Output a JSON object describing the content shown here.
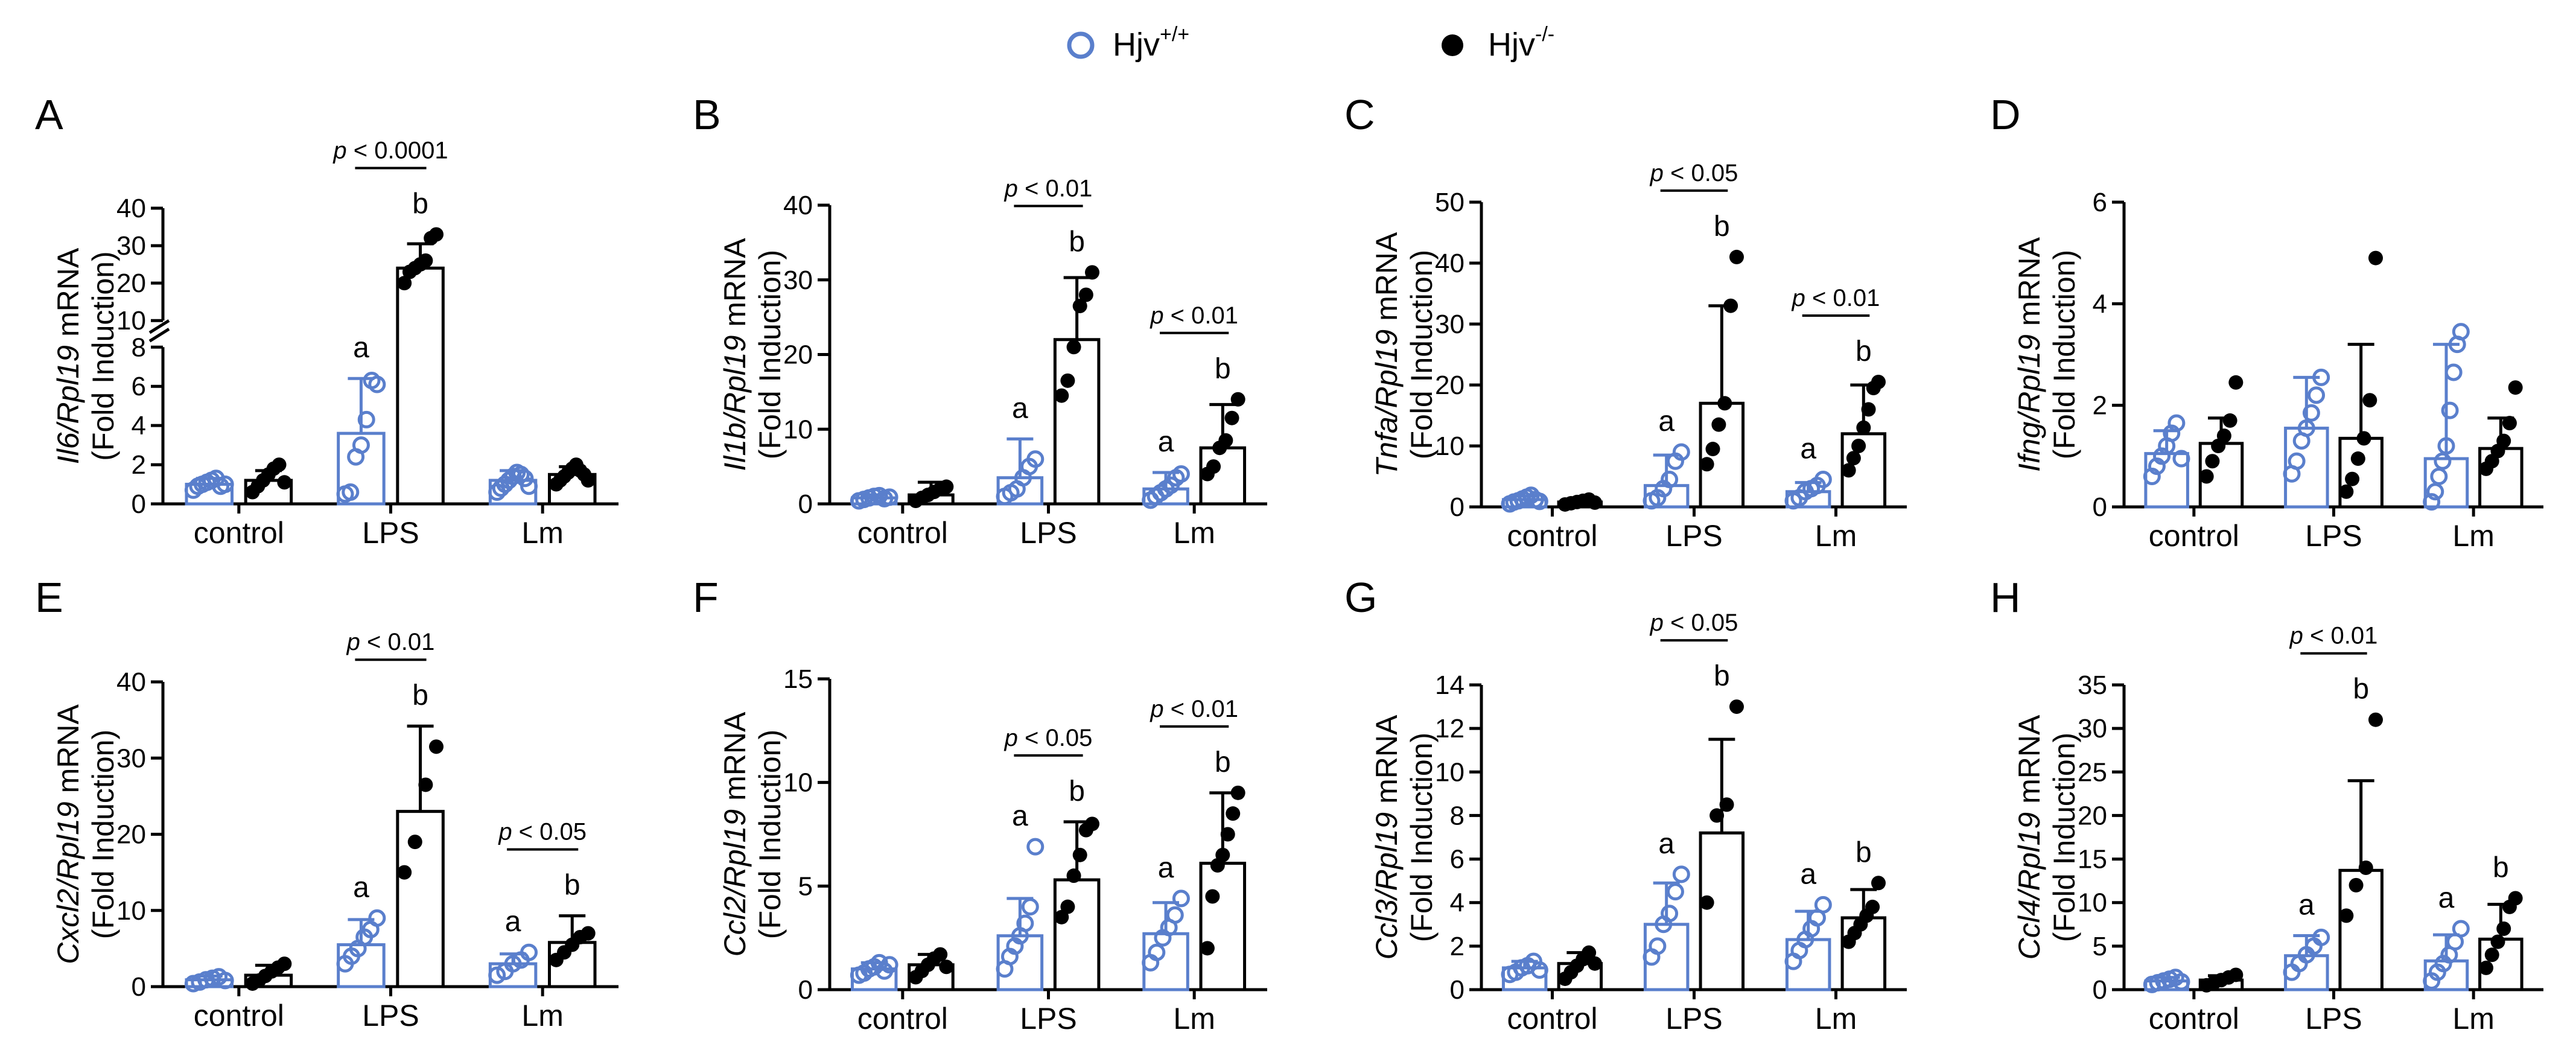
{
  "legend": {
    "wt": {
      "label": "Hjv",
      "sup": "+/+",
      "color": "#5a7fcc"
    },
    "ko": {
      "label": "Hjv",
      "sup": "-/-",
      "color": "#000000"
    }
  },
  "chart_data": [
    {
      "id": "A",
      "type": "bar",
      "letter": "A",
      "gene": "Il6",
      "ylabel_suffix": "mRNA",
      "ylabel2": "(Fold Induction)",
      "categories": [
        "control",
        "LPS",
        "Lm"
      ],
      "yticks": [
        "0",
        "2",
        "4",
        "6",
        "8",
        "10",
        "20",
        "30",
        "40"
      ],
      "ylim": [
        0,
        40
      ],
      "series": [
        {
          "name": "Hjv+/+",
          "means": [
            1.0,
            3.6,
            1.2
          ],
          "err": [
            0.3,
            2.8,
            0.5
          ],
          "points": [
            [
              0.7,
              0.9,
              1.0,
              1.1,
              1.2,
              1.3,
              0.9,
              1.0
            ],
            [
              0.5,
              0.6,
              2.4,
              3.0,
              4.3,
              6.3,
              6.1
            ],
            [
              0.6,
              0.8,
              1.0,
              1.2,
              1.4,
              1.6,
              1.5,
              1.3,
              0.9
            ]
          ]
        },
        {
          "name": "Hjv-/-",
          "means": [
            1.2,
            24.0,
            1.5
          ],
          "err": [
            0.5,
            6.5,
            0.4
          ],
          "points": [
            [
              0.6,
              0.9,
              1.2,
              1.5,
              1.8,
              2.0,
              1.1
            ],
            [
              20,
              23,
              24,
              25,
              26,
              32,
              33
            ],
            [
              1.0,
              1.2,
              1.4,
              1.6,
              1.8,
              2.0,
              1.7,
              1.5,
              1.2
            ]
          ]
        }
      ],
      "letters": [
        {
          "cat": 1,
          "series": 0,
          "text": "a"
        },
        {
          "cat": 1,
          "series": 1,
          "text": "b"
        }
      ],
      "pvalues": [
        {
          "cat": 1,
          "text": "p < 0.0001"
        }
      ]
    },
    {
      "id": "B",
      "type": "bar",
      "letter": "B",
      "gene": "Il1b",
      "ylabel_suffix": "mRNA",
      "ylabel2": "(Fold Induction)",
      "categories": [
        "control",
        "LPS",
        "Lm"
      ],
      "yticks": [
        "0",
        "10",
        "20",
        "30",
        "40"
      ],
      "ylim": [
        0,
        40
      ],
      "series": [
        {
          "name": "Hjv+/+",
          "means": [
            0.8,
            3.5,
            2.0
          ],
          "err": [
            0.4,
            5.2,
            2.2
          ],
          "points": [
            [
              0.4,
              0.6,
              0.8,
              1.0,
              1.1,
              0.7,
              0.9
            ],
            [
              1.0,
              1.5,
              2.0,
              3.5,
              5.0,
              6.0
            ],
            [
              0.5,
              1.0,
              1.5,
              2.0,
              2.5,
              3.5,
              4.0
            ]
          ]
        },
        {
          "name": "Hjv-/-",
          "means": [
            1.2,
            22.0,
            7.5
          ],
          "err": [
            1.7,
            8.3,
            5.8
          ],
          "points": [
            [
              0.4,
              0.8,
              1.2,
              1.6,
              2.0,
              2.3
            ],
            [
              14.5,
              16.5,
              21.0,
              26.5,
              28.0,
              31.0
            ],
            [
              4.0,
              5.0,
              7.5,
              8.5,
              11.5,
              14.0
            ]
          ]
        }
      ],
      "letters": [
        {
          "cat": 1,
          "series": 0,
          "text": "a"
        },
        {
          "cat": 1,
          "series": 1,
          "text": "b"
        },
        {
          "cat": 2,
          "series": 0,
          "text": "a"
        },
        {
          "cat": 2,
          "series": 1,
          "text": "b"
        }
      ],
      "pvalues": [
        {
          "cat": 1,
          "text": "p < 0.01"
        },
        {
          "cat": 2,
          "text": "p < 0.01"
        }
      ]
    },
    {
      "id": "C",
      "type": "bar",
      "letter": "C",
      "gene": "Tnfa",
      "ylabel_suffix": "mRNA",
      "ylabel2": "(Fold Induction)",
      "categories": [
        "control",
        "LPS",
        "Lm"
      ],
      "yticks": [
        "0",
        "10",
        "20",
        "30",
        "40",
        "50"
      ],
      "ylim": [
        0,
        50
      ],
      "series": [
        {
          "name": "Hjv+/+",
          "means": [
            1.2,
            3.5,
            2.5
          ],
          "err": [
            0.6,
            5.0,
            1.5
          ],
          "points": [
            [
              0.5,
              0.8,
              1.0,
              1.3,
              1.6,
              1.9,
              1.2,
              0.9
            ],
            [
              1.0,
              1.5,
              3.0,
              4.5,
              7.5,
              9.0
            ],
            [
              1.0,
              1.5,
              2.5,
              3.0,
              3.5,
              4.5
            ]
          ]
        },
        {
          "name": "Hjv-/-",
          "means": [
            0.8,
            17.0,
            12.0
          ],
          "err": [
            0.5,
            16.0,
            8.0
          ],
          "points": [
            [
              0.4,
              0.6,
              0.8,
              1.0,
              1.2,
              0.7
            ],
            [
              7.0,
              9.5,
              13.5,
              17.0,
              33.0,
              41.0
            ],
            [
              6.0,
              8.0,
              10.0,
              13.0,
              16.0,
              19.5,
              20.5
            ]
          ]
        }
      ],
      "letters": [
        {
          "cat": 1,
          "series": 0,
          "text": "a"
        },
        {
          "cat": 1,
          "series": 1,
          "text": "b"
        },
        {
          "cat": 2,
          "series": 0,
          "text": "a"
        },
        {
          "cat": 2,
          "series": 1,
          "text": "b"
        }
      ],
      "pvalues": [
        {
          "cat": 1,
          "text": "p < 0.05"
        },
        {
          "cat": 2,
          "text": "p < 0.01"
        }
      ]
    },
    {
      "id": "D",
      "type": "bar",
      "letter": "D",
      "gene": "Ifng",
      "ylabel_suffix": "mRNA",
      "ylabel2": "(Fold Induction)",
      "categories": [
        "control",
        "LPS",
        "Lm"
      ],
      "yticks": [
        "0",
        "2",
        "4",
        "6"
      ],
      "ylim": [
        0,
        6
      ],
      "series": [
        {
          "name": "Hjv+/+",
          "means": [
            1.05,
            1.55,
            0.95
          ],
          "err": [
            0.45,
            1.0,
            2.25
          ],
          "points": [
            [
              0.6,
              0.8,
              1.0,
              1.2,
              1.45,
              1.65,
              0.95
            ],
            [
              0.65,
              0.9,
              1.3,
              1.55,
              1.85,
              2.2,
              2.55
            ],
            [
              0.1,
              0.3,
              0.6,
              0.9,
              1.2,
              1.9,
              2.65,
              3.2,
              3.45
            ]
          ]
        },
        {
          "name": "Hjv-/-",
          "means": [
            1.25,
            1.35,
            1.15
          ],
          "err": [
            0.5,
            1.85,
            0.6
          ],
          "points": [
            [
              0.6,
              0.9,
              1.2,
              1.4,
              1.7,
              2.45
            ],
            [
              0.3,
              0.55,
              0.95,
              1.35,
              2.1,
              4.9
            ],
            [
              0.75,
              0.9,
              1.1,
              1.3,
              1.65,
              2.35
            ]
          ]
        }
      ],
      "letters": [],
      "pvalues": []
    },
    {
      "id": "E",
      "type": "bar",
      "letter": "E",
      "gene": "Cxcl2",
      "ylabel_suffix": "mRNA",
      "ylabel2": "(Fold Induction)",
      "categories": [
        "control",
        "LPS",
        "Lm"
      ],
      "yticks": [
        "0",
        "10",
        "20",
        "30",
        "40"
      ],
      "ylim": [
        0,
        40
      ],
      "series": [
        {
          "name": "Hjv+/+",
          "means": [
            0.9,
            5.5,
            3.0
          ],
          "err": [
            0.5,
            3.3,
            1.3
          ],
          "points": [
            [
              0.4,
              0.6,
              0.9,
              1.1,
              1.3,
              0.8
            ],
            [
              3.0,
              4.0,
              5.0,
              6.5,
              7.5,
              9.0
            ],
            [
              1.5,
              2.0,
              3.0,
              3.5,
              4.5
            ]
          ]
        },
        {
          "name": "Hjv-/-",
          "means": [
            1.5,
            23.0,
            5.8
          ],
          "err": [
            1.3,
            11.2,
            3.5
          ],
          "points": [
            [
              0.4,
              0.8,
              1.4,
              2.0,
              2.5,
              3.0
            ],
            [
              15.0,
              19.0,
              26.5,
              31.5
            ],
            [
              3.5,
              4.5,
              5.5,
              6.5,
              7.0
            ]
          ]
        }
      ],
      "letters": [
        {
          "cat": 1,
          "series": 0,
          "text": "a"
        },
        {
          "cat": 1,
          "series": 1,
          "text": "b"
        },
        {
          "cat": 2,
          "series": 0,
          "text": "a"
        },
        {
          "cat": 2,
          "series": 1,
          "text": "b"
        }
      ],
      "pvalues": [
        {
          "cat": 1,
          "text": "p < 0.01"
        },
        {
          "cat": 2,
          "text": "p < 0.05"
        }
      ]
    },
    {
      "id": "F",
      "type": "bar",
      "letter": "F",
      "gene": "Ccl2",
      "ylabel_suffix": "mRNA",
      "ylabel2": "(Fold Induction)",
      "categories": [
        "control",
        "LPS",
        "Lm"
      ],
      "yticks": [
        "0",
        "5",
        "10",
        "15"
      ],
      "ylim": [
        0,
        15
      ],
      "series": [
        {
          "name": "Hjv+/+",
          "means": [
            1.0,
            2.6,
            2.7
          ],
          "err": [
            0.3,
            1.8,
            1.5
          ],
          "points": [
            [
              0.7,
              0.8,
              1.0,
              1.1,
              1.3,
              0.9,
              1.2
            ],
            [
              1.0,
              1.6,
              2.1,
              2.6,
              3.2,
              4.0,
              6.9
            ],
            [
              1.3,
              1.8,
              2.5,
              3.0,
              3.6,
              4.4
            ]
          ]
        },
        {
          "name": "Hjv-/-",
          "means": [
            1.2,
            5.3,
            6.1
          ],
          "err": [
            0.5,
            2.8,
            3.4
          ],
          "points": [
            [
              0.6,
              0.9,
              1.2,
              1.5,
              1.7,
              1.1
            ],
            [
              3.5,
              4.0,
              5.5,
              6.5,
              7.7,
              8.0
            ],
            [
              2.0,
              4.5,
              6.0,
              6.5,
              7.5,
              8.5,
              9.5
            ]
          ]
        }
      ],
      "letters": [
        {
          "cat": 1,
          "series": 0,
          "text": "a"
        },
        {
          "cat": 1,
          "series": 1,
          "text": "b"
        },
        {
          "cat": 2,
          "series": 0,
          "text": "a"
        },
        {
          "cat": 2,
          "series": 1,
          "text": "b"
        }
      ],
      "pvalues": [
        {
          "cat": 1,
          "text": "p < 0.05"
        },
        {
          "cat": 2,
          "text": "p < 0.01"
        }
      ]
    },
    {
      "id": "G",
      "type": "bar",
      "letter": "G",
      "gene": "Ccl3",
      "ylabel_suffix": "mRNA",
      "ylabel2": "(Fold Induction)",
      "categories": [
        "control",
        "LPS",
        "Lm"
      ],
      "yticks": [
        "0",
        "2",
        "4",
        "6",
        "8",
        "10",
        "12",
        "14"
      ],
      "ylim": [
        0,
        14
      ],
      "series": [
        {
          "name": "Hjv+/+",
          "means": [
            1.0,
            3.0,
            2.3
          ],
          "err": [
            0.3,
            1.9,
            1.3
          ],
          "points": [
            [
              0.7,
              0.8,
              1.0,
              1.1,
              1.3,
              0.9
            ],
            [
              1.5,
              2.0,
              3.0,
              3.5,
              4.5,
              5.3
            ],
            [
              1.3,
              1.8,
              2.3,
              2.8,
              3.3,
              3.9
            ]
          ]
        },
        {
          "name": "Hjv-/-",
          "means": [
            1.2,
            7.2,
            3.3
          ],
          "err": [
            0.5,
            4.3,
            1.3
          ],
          "points": [
            [
              0.5,
              0.8,
              1.1,
              1.4,
              1.7,
              1.2
            ],
            [
              4.0,
              8.0,
              8.5,
              13.0
            ],
            [
              2.2,
              2.6,
              3.0,
              3.4,
              3.8,
              4.9
            ]
          ]
        }
      ],
      "letters": [
        {
          "cat": 1,
          "series": 0,
          "text": "a"
        },
        {
          "cat": 1,
          "series": 1,
          "text": "b"
        },
        {
          "cat": 2,
          "series": 0,
          "text": "a"
        },
        {
          "cat": 2,
          "series": 1,
          "text": "b"
        }
      ],
      "pvalues": [
        {
          "cat": 1,
          "text": "p < 0.05"
        }
      ]
    },
    {
      "id": "H",
      "type": "bar",
      "letter": "H",
      "gene": "Ccl4",
      "ylabel_suffix": "mRNA",
      "ylabel2": "(Fold Induction)",
      "categories": [
        "control",
        "LPS",
        "Lm"
      ],
      "yticks": [
        "0",
        "5",
        "10",
        "15",
        "20",
        "25",
        "30",
        "35"
      ],
      "ylim": [
        0,
        35
      ],
      "series": [
        {
          "name": "Hjv+/+",
          "means": [
            1.0,
            3.9,
            3.3
          ],
          "err": [
            0.4,
            2.3,
            3.0
          ],
          "points": [
            [
              0.6,
              0.8,
              1.0,
              1.2,
              1.4,
              0.9
            ],
            [
              2.0,
              3.0,
              4.0,
              5.0,
              6.0
            ],
            [
              1.0,
              2.0,
              3.0,
              4.0,
              5.5,
              7.0
            ]
          ]
        },
        {
          "name": "Hjv-/-",
          "means": [
            1.1,
            13.7,
            5.8
          ],
          "err": [
            0.5,
            10.3,
            4.0
          ],
          "points": [
            [
              0.5,
              0.8,
              1.1,
              1.4,
              1.7
            ],
            [
              8.5,
              12.0,
              14.0,
              31.0
            ],
            [
              2.5,
              4.0,
              5.5,
              7.0,
              9.5,
              10.5
            ]
          ]
        }
      ],
      "letters": [
        {
          "cat": 1,
          "series": 0,
          "text": "a"
        },
        {
          "cat": 1,
          "series": 1,
          "text": "b"
        },
        {
          "cat": 2,
          "series": 0,
          "text": "a"
        },
        {
          "cat": 2,
          "series": 1,
          "text": "b"
        }
      ],
      "pvalues": [
        {
          "cat": 1,
          "text": "p < 0.01"
        }
      ]
    }
  ]
}
